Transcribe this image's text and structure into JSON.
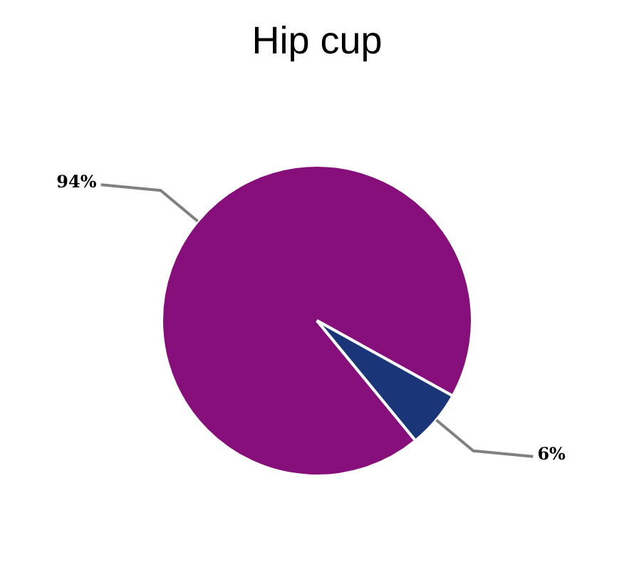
{
  "chart_data": {
    "type": "pie",
    "title": "Hip cup",
    "categories": [
      null,
      null
    ],
    "values": [
      94,
      6
    ],
    "colors": [
      "#870f7b",
      "#1a3678"
    ],
    "value_labels": [
      "94%",
      "6%"
    ]
  }
}
